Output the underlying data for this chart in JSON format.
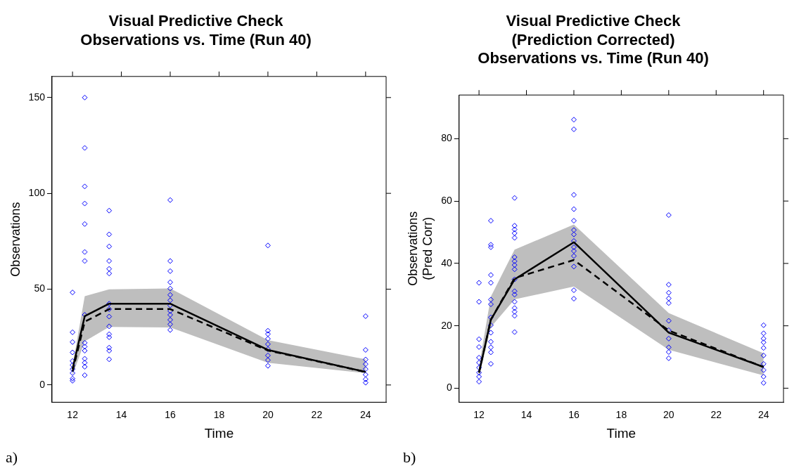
{
  "chart_data": [
    {
      "type": "scatter",
      "title": "Visual Predictive Check\nObservations vs. Time (Run 40)",
      "xlabel": "Time",
      "ylabel": "Observations",
      "annotations": [
        "a)"
      ],
      "xlim": [
        11.16,
        24.84
      ],
      "xticks": [
        12,
        14,
        16,
        18,
        20,
        22,
        24
      ],
      "ylim": [
        -9,
        161
      ],
      "yticks": [
        0,
        50,
        100,
        150
      ],
      "grid": false,
      "legend": false,
      "series": [
        {
          "type": "scatter",
          "color": "#0000ff",
          "marker": "diamond",
          "x": [
            12,
            12,
            12,
            12,
            12,
            12,
            12,
            12,
            12,
            12,
            12.5,
            12.5,
            12.5,
            12.5,
            12.5,
            12.5,
            12.5,
            12.5,
            12.5,
            12.5,
            12.5,
            12.5,
            12.5,
            12.5,
            12.5,
            13.5,
            13.5,
            13.5,
            13.5,
            13.5,
            13.5,
            13.5,
            13.5,
            13.5,
            13.5,
            13.5,
            13.5,
            13.5,
            13.5,
            13.5,
            16,
            16,
            16,
            16,
            16,
            16,
            16,
            16,
            16,
            16,
            16,
            16,
            16,
            20,
            20,
            20,
            20,
            20,
            20,
            20,
            20,
            20,
            24,
            24,
            24,
            24,
            24,
            24,
            24,
            24
          ],
          "values": [
            48.3,
            27.5,
            22.4,
            17,
            12.5,
            10.4,
            8.3,
            6.2,
            3.3,
            2.2,
            150,
            123.7,
            103.6,
            94.7,
            84,
            69.4,
            64.7,
            36.6,
            22,
            20,
            17.9,
            13.7,
            11.6,
            9.5,
            5.1,
            91,
            78.6,
            72.3,
            64.7,
            60.6,
            58.2,
            42.4,
            39.6,
            35.7,
            30.6,
            26.5,
            24.9,
            19.5,
            17.9,
            13.4,
            96.5,
            64.7,
            59.4,
            53.6,
            50.3,
            47,
            44.2,
            41.5,
            38.6,
            36.6,
            34,
            31.7,
            28.7,
            72.8,
            28.3,
            26.6,
            24.1,
            21.3,
            18.7,
            15.4,
            13,
            10,
            35.9,
            18.3,
            13.3,
            10.9,
            8.3,
            5.4,
            3,
            1.2
          ]
        },
        {
          "type": "line",
          "color": "#000000",
          "marker": "none",
          "line_style": "solid",
          "x": [
            12,
            12.5,
            13.5,
            16,
            20,
            24
          ],
          "values": [
            8.3,
            35.9,
            42.4,
            42.4,
            18.3,
            6.8
          ]
        },
        {
          "type": "line",
          "color": "#000000",
          "marker": "none",
          "line_style": "dashed",
          "x": [
            12,
            12.5,
            13.5,
            16,
            20,
            24
          ],
          "values": [
            7,
            33,
            39.6,
            39.6,
            18,
            6.8
          ],
          "lower": [
            5,
            22.8,
            30.3,
            30,
            11.6,
            6.2
          ],
          "upper": [
            10,
            46.3,
            49.9,
            50.4,
            23.4,
            13.4
          ]
        }
      ]
    },
    {
      "type": "scatter",
      "title": "Visual Predictive Check\n(Prediction Corrected)\nObservations vs. Time (Run 40)",
      "xlabel": "Time",
      "ylabel": "Observations\n(Pred Corr)",
      "annotations": [
        "b)"
      ],
      "xlim": [
        11.16,
        24.84
      ],
      "xticks": [
        12,
        14,
        16,
        18,
        20,
        22,
        24
      ],
      "ylim": [
        -4.5,
        94
      ],
      "yticks": [
        0,
        20,
        40,
        60,
        80
      ],
      "grid": false,
      "legend": false,
      "series": [
        {
          "type": "scatter",
          "color": "#0000ff",
          "marker": "diamond",
          "x": [
            12,
            12,
            12,
            12,
            12,
            12,
            12,
            12,
            12,
            12,
            12.5,
            12.5,
            12.5,
            12.5,
            12.5,
            12.5,
            12.5,
            12.5,
            12.5,
            12.5,
            12.5,
            12.5,
            12.5,
            12.5,
            13.5,
            13.5,
            13.5,
            13.5,
            13.5,
            13.5,
            13.5,
            13.5,
            13.5,
            13.5,
            13.5,
            13.5,
            13.5,
            13.5,
            13.5,
            13.5,
            13.5,
            16,
            16,
            16,
            16,
            16,
            16,
            16,
            16,
            16,
            16,
            16,
            16,
            16,
            16,
            20,
            20,
            20,
            20,
            20,
            20,
            20,
            20,
            20,
            20,
            20,
            24,
            24,
            24,
            24,
            24,
            24,
            24,
            24,
            24,
            24
          ],
          "values": [
            33.8,
            27.7,
            15.7,
            13.2,
            9.8,
            8.2,
            6.6,
            5,
            3.7,
            2.1,
            53.7,
            46,
            45.2,
            36.3,
            33.8,
            28.4,
            26.9,
            22.7,
            20.2,
            17.8,
            14.9,
            13.1,
            11.5,
            7.8,
            61,
            52.1,
            50.9,
            49.7,
            48.2,
            42,
            40.7,
            39.5,
            38.1,
            34.9,
            31.1,
            30,
            27.7,
            25.7,
            24.5,
            23.2,
            18,
            86.1,
            83,
            62,
            57.4,
            53.7,
            50.7,
            49.3,
            47.2,
            45.2,
            44,
            42.4,
            39,
            31.4,
            28.7,
            55.5,
            33.2,
            30.6,
            28.8,
            27.3,
            21.6,
            18.6,
            15.9,
            13.1,
            11.6,
            9.6,
            20.2,
            17.6,
            15.9,
            14.7,
            12.9,
            10.5,
            7.8,
            5.8,
            3.7,
            1.7
          ]
        },
        {
          "type": "line",
          "color": "#000000",
          "marker": "none",
          "line_style": "solid",
          "x": [
            12,
            12.5,
            13.5,
            16,
            20,
            24
          ],
          "values": [
            5,
            22,
            34.9,
            46.8,
            17.8,
            6.8
          ]
        },
        {
          "type": "line",
          "color": "#000000",
          "marker": "none",
          "line_style": "dashed",
          "x": [
            12,
            12.5,
            13.5,
            16,
            20,
            24
          ],
          "values": [
            5,
            22,
            35.3,
            41.1,
            18.5,
            6.8
          ],
          "lower": [
            3.5,
            19.6,
            28.5,
            32.6,
            12.3,
            4.1
          ],
          "upper": [
            7,
            29.4,
            44.4,
            52.5,
            24.1,
            11.2
          ]
        }
      ]
    }
  ]
}
